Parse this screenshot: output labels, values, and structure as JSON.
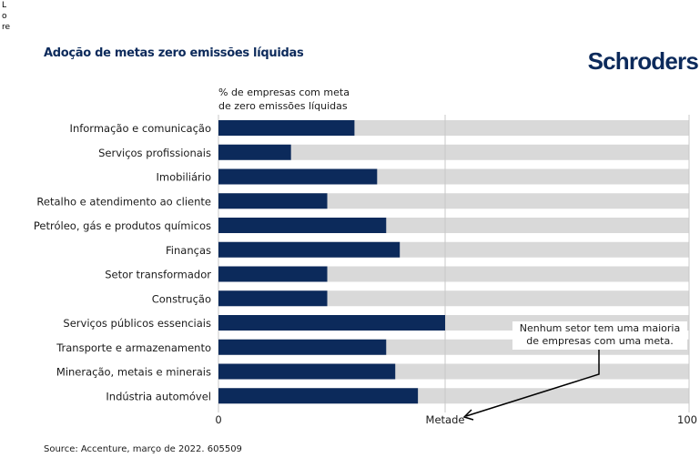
{
  "corner_text": [
    "L",
    "o",
    "re"
  ],
  "title": "Adoção de metas zero emissões líquidas",
  "logo": "Schroders",
  "source": "Source: Accenture, março de 2022. 605509",
  "colors": {
    "bar": "#0c2a5b",
    "track": "#d9d9d9",
    "gridline": "#c8c8c8",
    "title": "#0c2a5b"
  },
  "chart_data": {
    "type": "bar",
    "orientation": "horizontal",
    "title": "Adoção de metas zero emissões líquidas",
    "subtitle_lines": [
      "% de empresas com meta",
      "de zero emissões líquidas"
    ],
    "xlabel": "",
    "ylabel": "",
    "xlim": [
      0,
      100
    ],
    "xticks": [
      {
        "value": 0,
        "label": "0"
      },
      {
        "value": 50,
        "label": "Metade"
      },
      {
        "value": 100,
        "label": "100"
      }
    ],
    "reference_line": {
      "value": 50,
      "label": "Metade"
    },
    "categories": [
      "Informação e comunicação",
      "Serviços profissionais",
      "Imobiliário",
      "Retalho e atendimento ao cliente",
      "Petróleo, gás e produtos químicos",
      "Finanças",
      "Setor transformador",
      "Construção",
      "Serviços públicos essenciais",
      "Transporte e armazenamento",
      "Mineração, metais e minerais",
      "Indústria automóvel"
    ],
    "values": [
      30,
      16,
      35,
      24,
      37,
      40,
      24,
      24,
      50,
      37,
      39,
      44
    ],
    "annotation": {
      "lines": [
        "Nenhum setor tem uma maioria",
        "de empresas com uma meta."
      ],
      "points_to": "Metade"
    }
  }
}
